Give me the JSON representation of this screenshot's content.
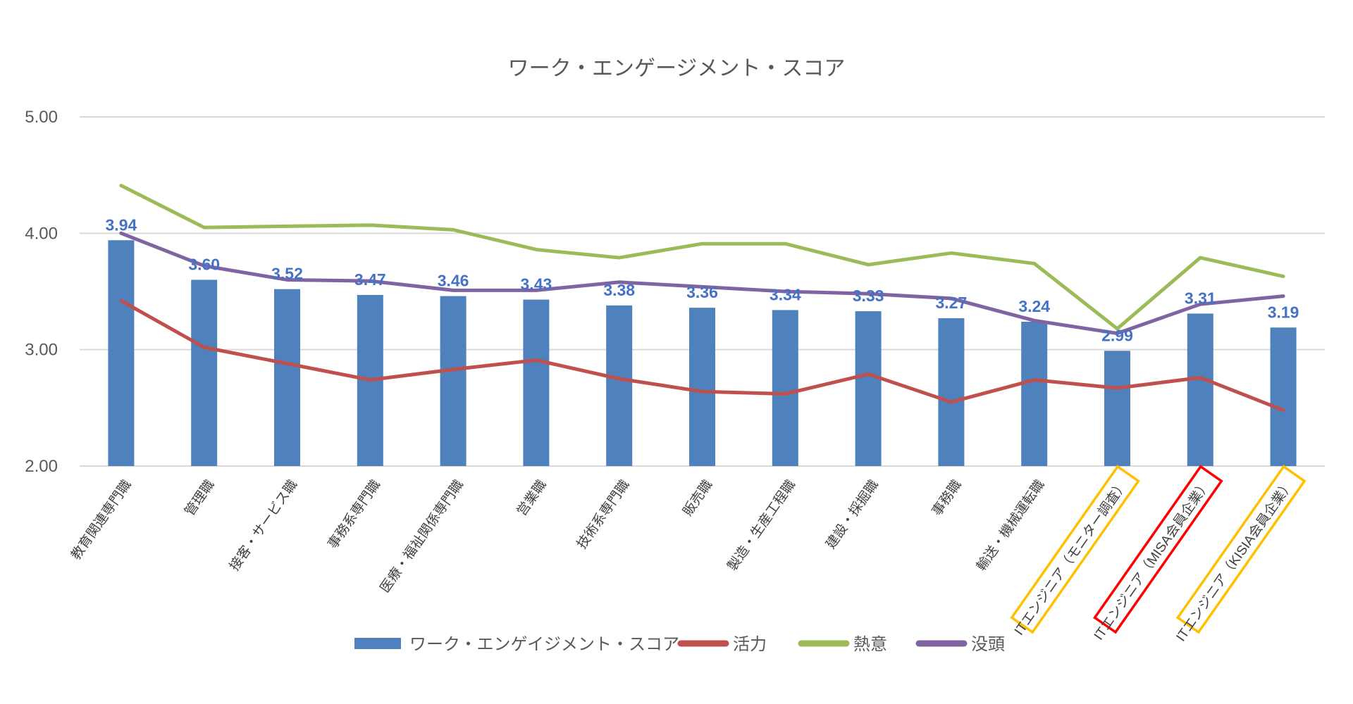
{
  "chart_data": {
    "type": "bar+line",
    "title": "ワーク・エンゲージメント・スコア",
    "xlabel": "",
    "ylabel": "",
    "ylim": [
      2.0,
      5.0
    ],
    "yticks": [
      "2.00",
      "3.00",
      "4.00",
      "5.00"
    ],
    "grid": true,
    "legend_position": "bottom",
    "categories": [
      "教育関連専門職",
      "管理職",
      "接客・サービス職",
      "事務系専門職",
      "医療・福祉関係専門職",
      "営業職",
      "技術系専門職",
      "販売職",
      "製造・生産工程職",
      "建設・採掘職",
      "事務職",
      "輸送・機械運転職",
      "ITエンジニア（モニター調査）",
      "ITエンジニア（MISA会員企業）",
      "ITエンジニア（KISIA会員企業）"
    ],
    "label_highlights": [
      null,
      null,
      null,
      null,
      null,
      null,
      null,
      null,
      null,
      null,
      null,
      null,
      "#FFC000",
      "#FF0000",
      "#FFC000"
    ],
    "series": [
      {
        "name": "ワーク・エンゲイジメント・スコア",
        "type": "bar",
        "color": "#4F81BD",
        "label_color": "#4472C4",
        "values": [
          3.94,
          3.6,
          3.52,
          3.47,
          3.46,
          3.43,
          3.38,
          3.36,
          3.34,
          3.33,
          3.27,
          3.24,
          2.99,
          3.31,
          3.19
        ],
        "labels": [
          "3.94",
          "3.60",
          "3.52",
          "3.47",
          "3.46",
          "3.43",
          "3.38",
          "3.36",
          "3.34",
          "3.33",
          "3.27",
          "3.24",
          "2.99",
          "3.31",
          "3.19"
        ]
      },
      {
        "name": "活力",
        "type": "line",
        "color": "#C0504D",
        "values": [
          3.42,
          3.02,
          2.88,
          2.74,
          2.83,
          2.91,
          2.75,
          2.64,
          2.62,
          2.79,
          2.55,
          2.74,
          2.67,
          2.76,
          2.48
        ]
      },
      {
        "name": "熱意",
        "type": "line",
        "color": "#9BBB59",
        "values": [
          4.41,
          4.05,
          4.06,
          4.07,
          4.03,
          3.86,
          3.79,
          3.91,
          3.91,
          3.73,
          3.83,
          3.74,
          3.18,
          3.79,
          3.63
        ]
      },
      {
        "name": "没頭",
        "type": "line",
        "color": "#8064A2",
        "values": [
          4.0,
          3.72,
          3.6,
          3.59,
          3.51,
          3.51,
          3.58,
          3.54,
          3.5,
          3.48,
          3.44,
          3.25,
          3.14,
          3.39,
          3.46
        ]
      }
    ]
  }
}
